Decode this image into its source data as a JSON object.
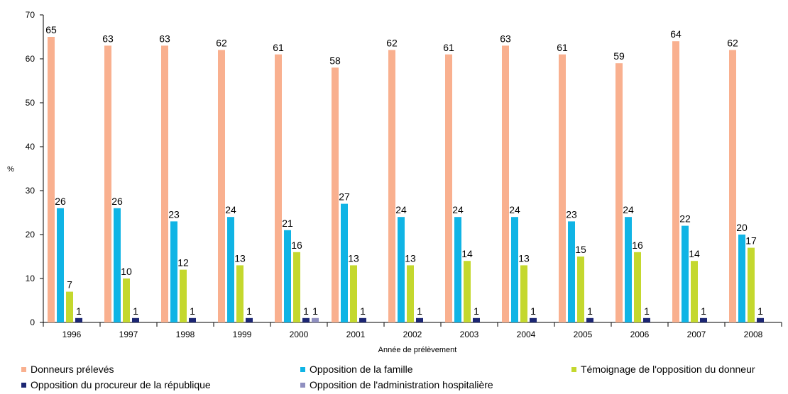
{
  "chart_data": {
    "type": "bar",
    "categories": [
      "1996",
      "1997",
      "1998",
      "1999",
      "2000",
      "2001",
      "2002",
      "2003",
      "2004",
      "2005",
      "2006",
      "2007",
      "2008"
    ],
    "series": [
      {
        "name": "Donneurs prélevés",
        "color": "#f9b08f",
        "values": [
          65,
          63,
          63,
          62,
          61,
          58,
          62,
          61,
          63,
          61,
          59,
          64,
          62
        ],
        "labels": [
          "65",
          "63",
          "63",
          "62",
          "61",
          "58",
          "62",
          "61",
          "63",
          "61",
          "59",
          "64",
          "62"
        ]
      },
      {
        "name": "Opposition de la famille",
        "color": "#10b4e5",
        "values": [
          26,
          26,
          23,
          24,
          21,
          27,
          24,
          24,
          24,
          23,
          24,
          22,
          20
        ],
        "labels": [
          "26",
          "26",
          "23",
          "24",
          "21",
          "27",
          "24",
          "24",
          "24",
          "23",
          "24",
          "22",
          "20"
        ]
      },
      {
        "name": "Témoignage de l'opposition du donneur",
        "color": "#c4d82e",
        "values": [
          7,
          10,
          12,
          13,
          16,
          13,
          13,
          14,
          13,
          15,
          16,
          14,
          17
        ],
        "labels": [
          "7",
          "10",
          "12",
          "13",
          "16",
          "13",
          "13",
          "14",
          "13",
          "15",
          "16",
          "14",
          "17"
        ]
      },
      {
        "name": "Opposition du procureur de la république",
        "color": "#1c2673",
        "values": [
          1,
          1,
          1,
          1,
          1,
          1,
          1,
          1,
          1,
          1,
          1,
          1,
          1
        ],
        "labels": [
          "1",
          "1",
          "1",
          "1",
          "1",
          "1",
          "1",
          "1",
          "1",
          "1",
          "1",
          "1",
          "1"
        ]
      },
      {
        "name": "Opposition de l'administration hospitalière",
        "color": "#8f8fc0",
        "values": [
          0,
          0,
          0,
          0,
          1,
          0,
          0,
          0,
          0,
          0,
          0,
          0,
          0
        ],
        "labels": [
          "",
          "",
          "",
          "",
          "1",
          "",
          "",
          "",
          "",
          "",
          "",
          "",
          ""
        ]
      }
    ],
    "ylabel": "%",
    "xlabel": "Année de prélèvement",
    "ylim": [
      0,
      70
    ],
    "yticks": [
      "0",
      "10",
      "20",
      "30",
      "40",
      "50",
      "60",
      "70"
    ],
    "grid": false,
    "legend_position": "bottom"
  }
}
